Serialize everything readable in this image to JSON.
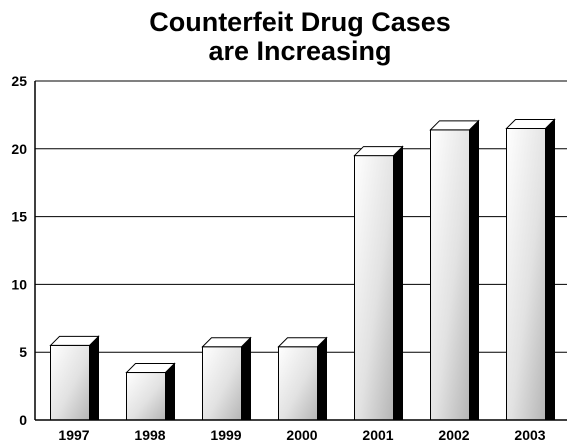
{
  "chart_data": {
    "type": "bar",
    "title_lines": [
      "Counterfeit Drug Cases",
      "are Increasing"
    ],
    "categories": [
      "1997",
      "1998",
      "1999",
      "2000",
      "2001",
      "2002",
      "2003"
    ],
    "values": [
      5.5,
      3.5,
      5.4,
      5.4,
      19.5,
      21.4,
      21.5
    ],
    "y_ticks": [
      "0",
      "5",
      "10",
      "15",
      "20",
      "25"
    ],
    "ylim": [
      0,
      25
    ],
    "xlabel": "",
    "ylabel": "",
    "grid": true,
    "legend": "none",
    "style": "3d-bar",
    "colors": {
      "bar_top": "#ffffff",
      "bar_face": "#e6e6e6",
      "bar_side": "#000000",
      "grid": "#000000"
    }
  }
}
